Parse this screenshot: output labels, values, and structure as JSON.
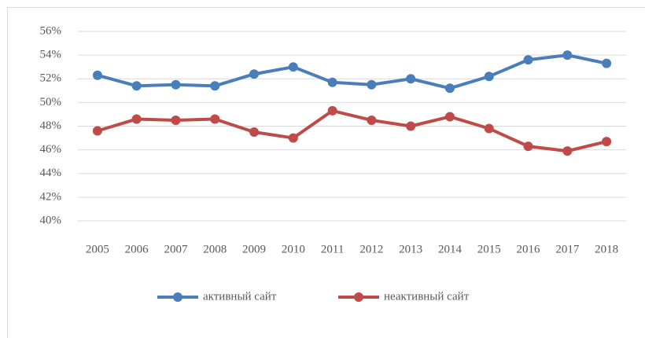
{
  "chart_data": {
    "type": "line",
    "categories": [
      "2005",
      "2006",
      "2007",
      "2008",
      "2009",
      "2010",
      "2011",
      "2012",
      "2013",
      "2014",
      "2015",
      "2016",
      "2017",
      "2018"
    ],
    "series": [
      {
        "name": "активный сайт",
        "color": "#4a7ebb",
        "values": [
          52.3,
          51.4,
          51.5,
          51.4,
          52.4,
          53.0,
          51.7,
          51.5,
          52.0,
          51.2,
          52.2,
          53.6,
          54.0,
          53.3
        ]
      },
      {
        "name": "неактивный сайт",
        "color": "#be4b48",
        "values": [
          47.6,
          48.6,
          48.5,
          48.6,
          47.5,
          47.0,
          49.3,
          48.5,
          48.0,
          48.8,
          47.8,
          46.3,
          45.9,
          46.7
        ]
      }
    ],
    "ylim": [
      40,
      56
    ],
    "yticks": [
      {
        "value": 40,
        "label": "40%"
      },
      {
        "value": 42,
        "label": "42%"
      },
      {
        "value": 44,
        "label": "44%"
      },
      {
        "value": 46,
        "label": "46%"
      },
      {
        "value": 48,
        "label": "48%"
      },
      {
        "value": 50,
        "label": "50%"
      },
      {
        "value": 52,
        "label": "52%"
      },
      {
        "value": 54,
        "label": "54%"
      },
      {
        "value": 56,
        "label": "56%"
      }
    ],
    "grid": true,
    "legend": "bottom"
  }
}
